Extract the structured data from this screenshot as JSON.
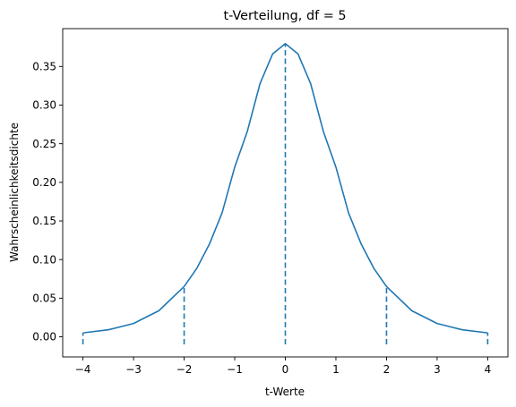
{
  "chart_data": {
    "type": "line",
    "title": "t-Verteilung, df = 5",
    "xlabel": "t-Werte",
    "ylabel": "Wahrscheinlichkeitsdichte",
    "xlim": [
      -4.4,
      4.4
    ],
    "ylim": [
      -0.026,
      0.399
    ],
    "x_ticks": [
      -4,
      -3,
      -2,
      -1,
      0,
      1,
      2,
      3,
      4
    ],
    "x_tick_labels": [
      "−4",
      "−3",
      "−2",
      "−1",
      "0",
      "1",
      "2",
      "3",
      "4"
    ],
    "y_ticks": [
      0.0,
      0.05,
      0.1,
      0.15,
      0.2,
      0.25,
      0.3,
      0.35
    ],
    "y_tick_labels": [
      "0.00",
      "0.05",
      "0.10",
      "0.15",
      "0.20",
      "0.25",
      "0.30",
      "0.35"
    ],
    "grid": false,
    "legend": "none",
    "series": [
      {
        "color": "#1f77b4",
        "style": "solid",
        "x": [
          -4.0,
          -3.5,
          -3.0,
          -2.5,
          -2.0,
          -1.75,
          -1.5,
          -1.25,
          -1.0,
          -0.75,
          -0.5,
          -0.25,
          0.0,
          0.25,
          0.5,
          0.75,
          1.0,
          1.25,
          1.5,
          1.75,
          2.0,
          2.5,
          3.0,
          3.5,
          4.0
        ],
        "y": [
          0.0051,
          0.0091,
          0.0173,
          0.0338,
          0.0651,
          0.0886,
          0.12,
          0.1604,
          0.2197,
          0.2663,
          0.3279,
          0.3663,
          0.3796,
          0.3663,
          0.3279,
          0.2663,
          0.2197,
          0.1604,
          0.12,
          0.0886,
          0.0651,
          0.0338,
          0.0173,
          0.0091,
          0.0051
        ]
      }
    ],
    "vlines": {
      "color": "#1f77b4",
      "style": "dashed",
      "items": [
        {
          "x": -4,
          "y_top": 0.0051
        },
        {
          "x": -2,
          "y_top": 0.0651
        },
        {
          "x": 0,
          "y_top": 0.3796
        },
        {
          "x": 2,
          "y_top": 0.0651
        },
        {
          "x": 4,
          "y_top": 0.0051
        }
      ]
    }
  }
}
